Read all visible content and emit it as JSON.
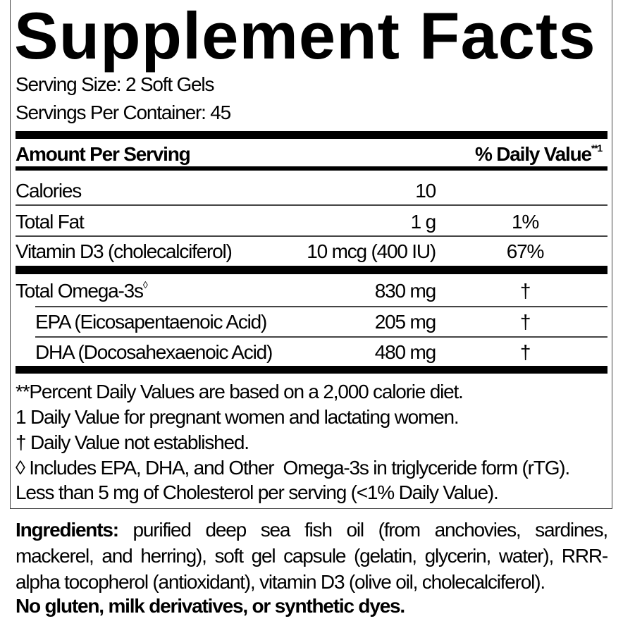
{
  "title": "Supplement Facts",
  "serving_size": "Serving Size: 2 Soft Gels",
  "servings_per_container": "Servings Per Container: 45",
  "header": {
    "amount": "Amount Per Serving",
    "dv": "% Daily Value",
    "dv_mark": "**1"
  },
  "rows": [
    {
      "name": "Calories",
      "amount": "10",
      "dv": ""
    },
    {
      "name": "Total Fat",
      "amount": "1 g",
      "dv": "1%"
    },
    {
      "name": "Vitamin D3 (cholecalciferol)",
      "amount": "10 mcg (400 IU)",
      "dv": "67%"
    },
    {
      "name": "Total Omega-3s",
      "mark": "◊",
      "amount": "830 mg",
      "dv": "†"
    },
    {
      "name": "EPA (Eicosapentaenoic Acid)",
      "amount": "205 mg",
      "dv": "†"
    },
    {
      "name": "DHA (Docosahexaenoic Acid)",
      "amount": "480 mg",
      "dv": "†"
    }
  ],
  "footnotes": [
    "**Percent Daily Values are based on a 2,000 calorie diet.",
    "1 Daily Value for pregnant women and lactating women.",
    "† Daily Value not established.",
    "◊ Includes EPA, DHA, and Other  Omega-3s in triglyceride form (rTG).",
    "Less than 5 mg of Cholesterol per serving (<1% Daily Value)."
  ],
  "ingredients": {
    "label": "Ingredients:",
    "text": " purified deep sea fish oil (from anchovies, sardines, mackerel, and herring), soft gel capsule (gelatin, glycerin, water), RRR-alpha tocopherol (antioxidant), vitamin D3 (olive oil, cholecalciferol)."
  },
  "free_from": "No gluten, milk derivatives, or synthetic dyes."
}
